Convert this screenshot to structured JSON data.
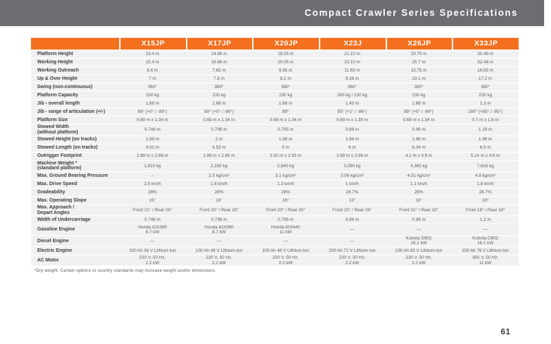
{
  "header": {
    "title": "Compact Crawler Series Specifications"
  },
  "table": {
    "columns": [
      "X15JP",
      "X17JP",
      "X20JP",
      "X23J",
      "X26JP",
      "X33JP"
    ],
    "rows": [
      {
        "label": "Platform Height",
        "tall": false,
        "values": [
          "13.4 m",
          "14.96 m",
          "18.05 m",
          "21.10 m",
          "23.70 m",
          "30.48 m"
        ]
      },
      {
        "label": "Working Height",
        "tall": false,
        "values": [
          "15.4 m",
          "16.96 m",
          "20.05 m",
          "23.10 m",
          "25.7 m",
          "32.48 m"
        ]
      },
      {
        "label": "Working Outreach",
        "tall": false,
        "values": [
          "6.6 m",
          "7.65 m",
          "9.85 m",
          "11.63 m",
          "13.75 m",
          "16.65 m"
        ]
      },
      {
        "label": "Up & Over Height",
        "tall": false,
        "values": [
          "7 m",
          "7.8 m",
          "8.2 m",
          "9.38 m",
          "10.1 m",
          "17.2 m"
        ]
      },
      {
        "label": "Swing (non-continuous)",
        "tall": false,
        "values": [
          "360°",
          "360°",
          "360°",
          "360°",
          "360°",
          "360°"
        ]
      },
      {
        "label": "Platform Capacity",
        "tall": false,
        "values": [
          "230 kg",
          "230 kg",
          "230 kg",
          "200 kg / 120 kg",
          "230 kg",
          "230 kg"
        ]
      },
      {
        "label": "Jib - overall length",
        "tall": false,
        "values": [
          "1.68 m",
          "1.68 m",
          "1.68 m",
          "1.43 m",
          "1.68 m",
          "1.3 m"
        ]
      },
      {
        "label": "Jib - range of articulation (+/-)",
        "tall": false,
        "values": [
          "89° (+0° / -89°)",
          "89° (+0° / -89°)",
          "89°",
          "85° (+1° / -86°)",
          "89° (+0° / -89°)",
          "180° (+85° / -95°)"
        ]
      },
      {
        "label": "Platform Size",
        "tall": false,
        "values": [
          "0.69 m x 1.34 m",
          "0.69 m x 1.34 m",
          "0.69 m x 1.34 m",
          "0.69 m x 1.30 m",
          "0.69 m x 1.34 m",
          "0.7 m x 1.6 m"
        ]
      },
      {
        "label": "Stowed Width",
        "label2": "(without platform)",
        "tall": true,
        "values": [
          "0.748 m",
          "0.798 m",
          "0.795 m",
          "0.99 m",
          "0.99 m",
          "1.19 m"
        ]
      },
      {
        "label": "Stowed Height (on tracks)",
        "tall": false,
        "values": [
          "1.99 m",
          "2 m",
          "1.99 m",
          "1.99 m",
          "1.98 m",
          "1.99 m"
        ]
      },
      {
        "label": "Stowed Length (on tracks)",
        "tall": false,
        "values": [
          "4.02 m",
          "4.53 m",
          "5 m",
          "6 m",
          "6.34 m",
          "6.5 m"
        ]
      },
      {
        "label": "Outrigger Footprint",
        "tall": false,
        "values": [
          "2.88 m x 2.88 m",
          "2.89 m x 2.88 m",
          "2.92 m x 2.93 m",
          "3.98 m x 3.98 m",
          "4.1 m x 3.9 m",
          "5.14 m x 4.6 m"
        ]
      },
      {
        "label": "Machine Weight *",
        "label2": "(standard platform)",
        "tall": true,
        "values": [
          "1,910 kg",
          "2,230 kg",
          "2,840 kg",
          "3,090 kg",
          "4,365 kg",
          "7,616 kg"
        ]
      },
      {
        "label": "Max. Ground Bearing Pressure",
        "tall": false,
        "values": [
          "–",
          "2.5 kg/cm²",
          "3.1 kg/cm²",
          "3.06 kg/cm²",
          "4.51 kg/cm²",
          "4.8 kg/cm²"
        ]
      },
      {
        "label": "Max. Drive Speed",
        "tall": false,
        "values": [
          "2.5 km/h",
          "1.8 km/h",
          "1.3 km/h",
          "1 km/h",
          "1.1 km/h",
          "1.8 km/h"
        ]
      },
      {
        "label": "Gradeability",
        "tall": false,
        "values": [
          "28%",
          "28%",
          "28%",
          "28.7%",
          "28%",
          "28.7%"
        ]
      },
      {
        "label": "Max. Operating Slope",
        "tall": false,
        "values": [
          "15°",
          "16°",
          "16°",
          "13°",
          "16°",
          "16°"
        ]
      },
      {
        "label": "Max. Approach /",
        "label2": "Depart Angles",
        "tall": true,
        "values": [
          "Front 21° / Rear 20°",
          "Front 20° / Rear 20°",
          "Front 20° / Rear 20°",
          "Front 22° / Rear 25°",
          "Front 22° / Rear 22°",
          "Front 18° / Rear 18°"
        ]
      },
      {
        "label": "Width of Undercarriage",
        "tall": false,
        "values": [
          "0.748 m",
          "0.798 m",
          "0.795 m",
          "0.99 m",
          "0.99 m",
          "1.2 m"
        ]
      },
      {
        "label": "Gasoline Engine",
        "tall": true,
        "values": [
          "Honda iGX390\n8.7 kW",
          "Honda iGX390\n8.7 kW",
          "Honda iGX440\n11 kW",
          "—",
          "—",
          "—"
        ]
      },
      {
        "label": "Diesel Engine",
        "tall": true,
        "values": [
          "—",
          "—",
          "—",
          "—",
          "Kubota D902\n16.1 kW",
          "Kubota D902\n16.1 kW"
        ]
      },
      {
        "label": "Electric Engine",
        "tall": false,
        "values": [
          "100 Ah 36 V Lithium-Ion",
          "100 Ah 48 V Lithium-Ion",
          "100 Ah 48 V Lithium-Ion",
          "100 Ah 72 V Lithium-Ion",
          "100 Ah 83 V Lithium-Ion",
          "150 Ah 76 V Lithium-Ion"
        ]
      },
      {
        "label": "AC Motor",
        "tall": true,
        "values": [
          "220 V, 50 Hz,\n2.2 kW",
          "220 V, 50 Hz,\n2.2 kW",
          "220 V, 50 Hz,\n2.2 kW",
          "220 V, 50 Hz,\n2.2 kW",
          "230 V, 50 Hz,\n2.2 kW",
          "380 V, 50 Hz,\n11 kW"
        ]
      }
    ]
  },
  "footnote": "*Dry weight. Certain options or country standards may increase weight and/or dimensions.",
  "page_number": "61",
  "colors": {
    "accent_orange": "#F4701F",
    "header_gray": "#6C6D70",
    "row_background": "#F1F1F2"
  }
}
